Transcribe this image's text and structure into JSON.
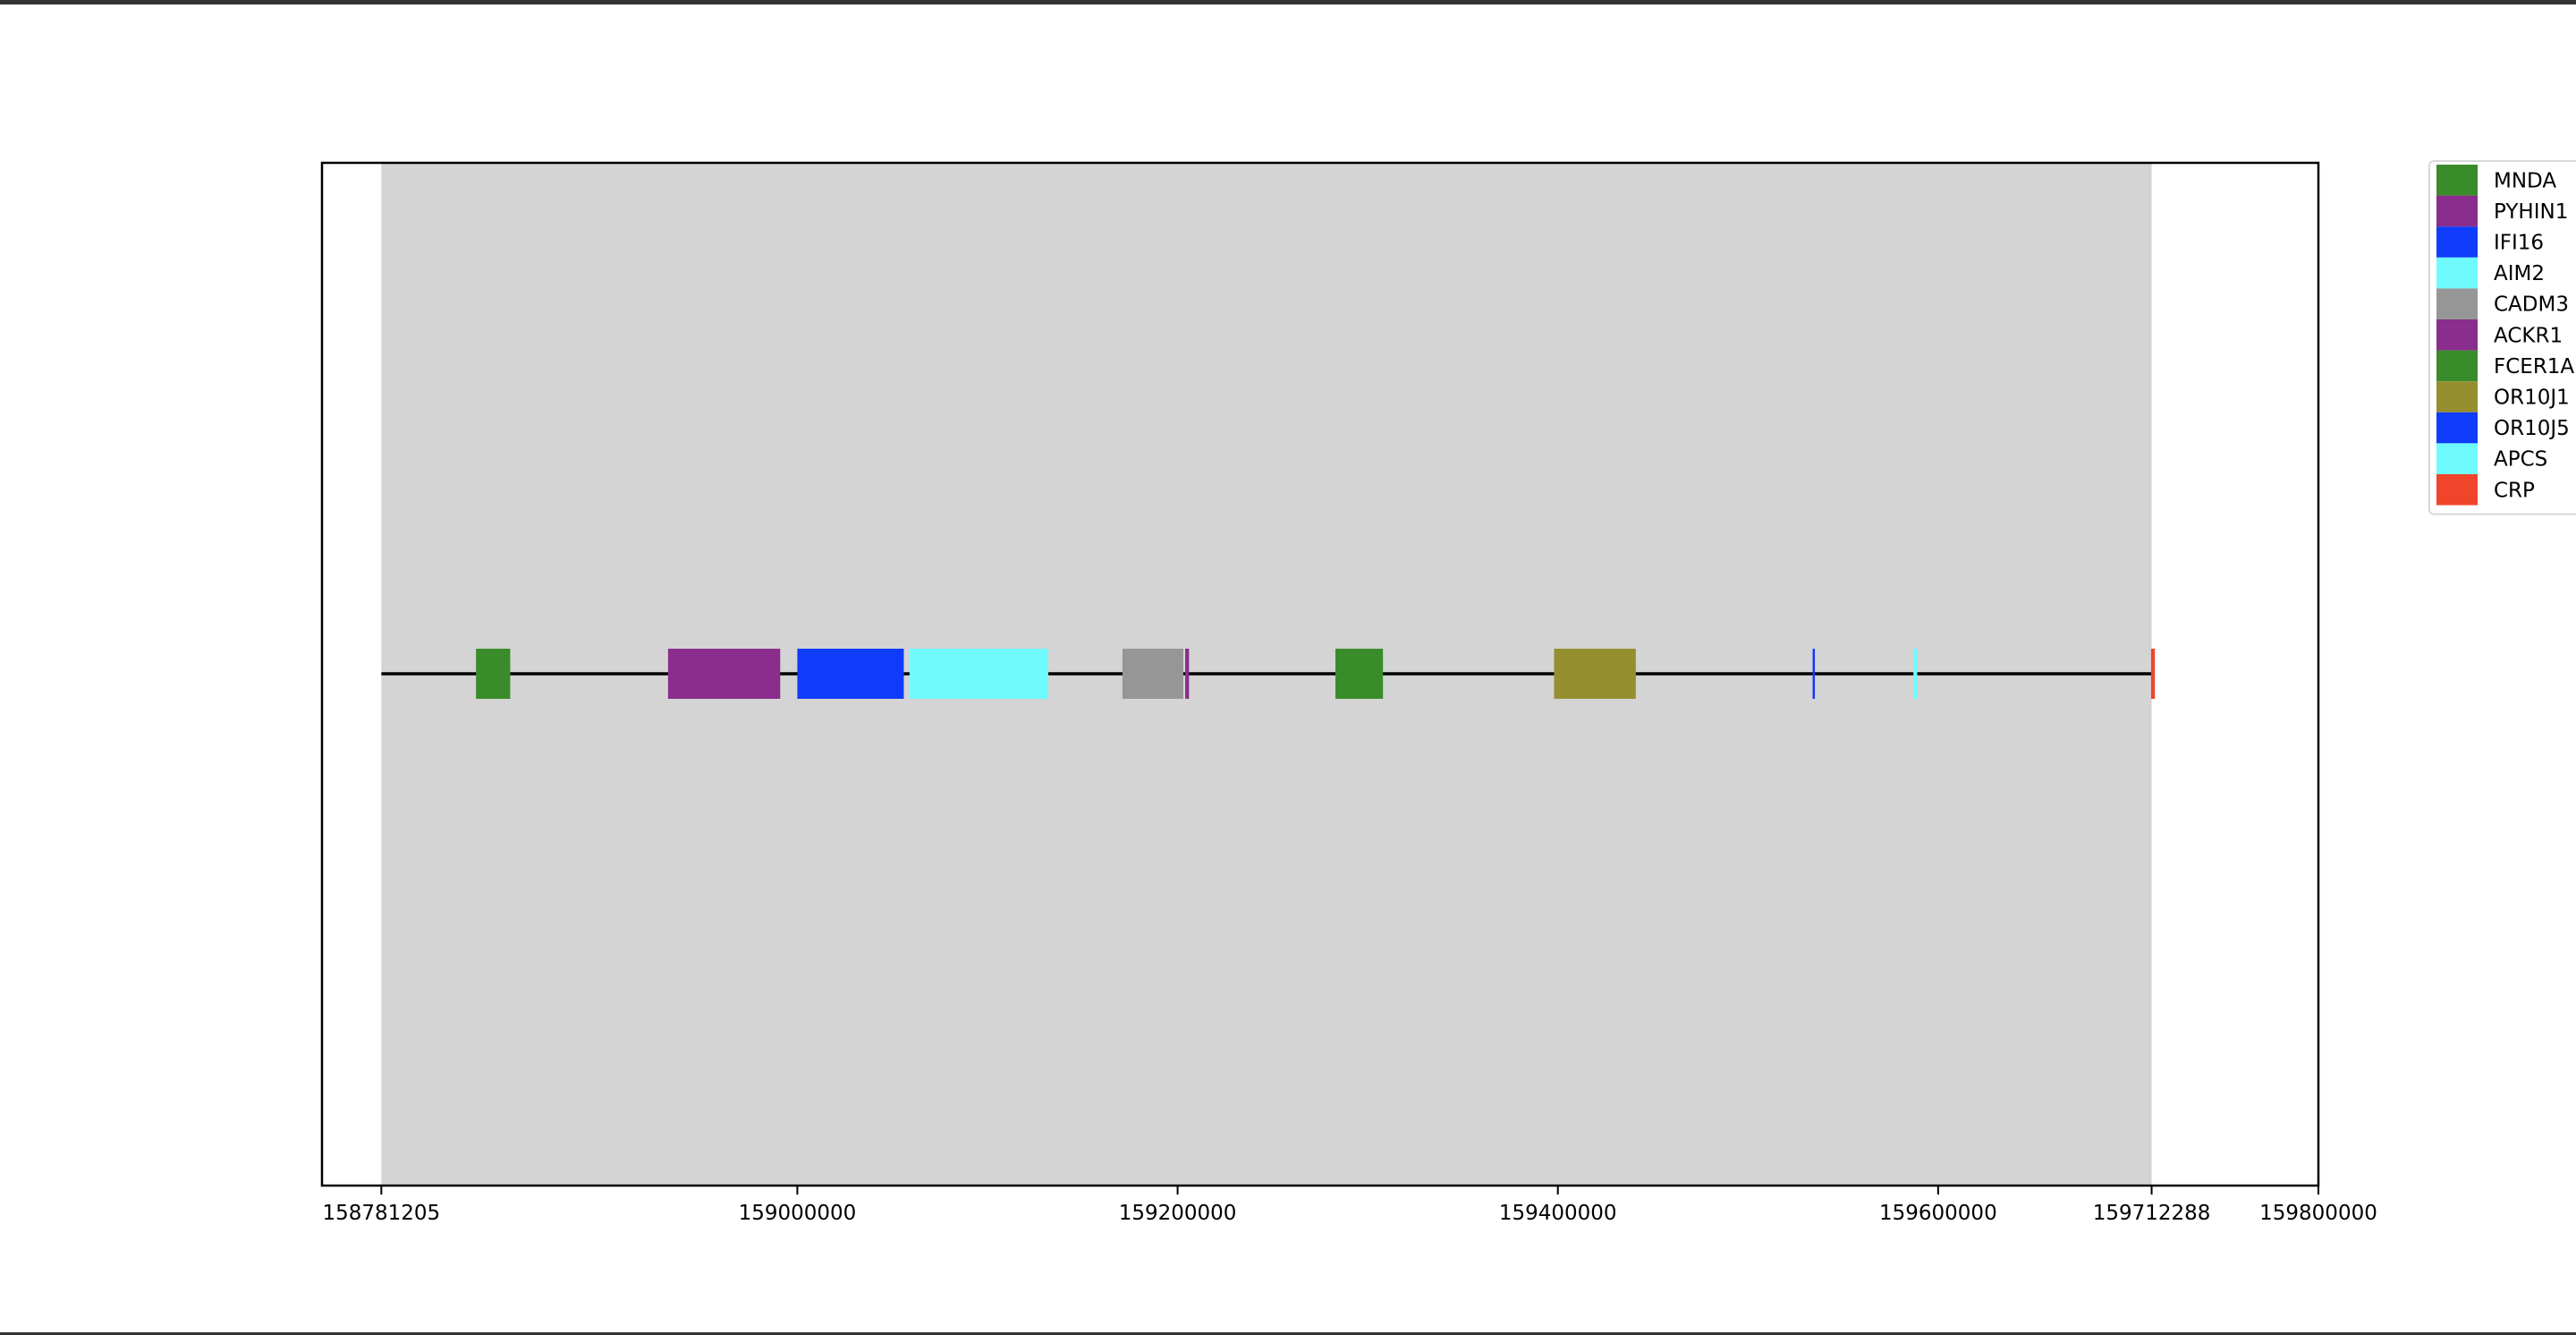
{
  "chart_data": {
    "type": "gene-track",
    "title": "",
    "xlabel": "",
    "ylabel": "",
    "xlim": [
      158750000,
      159800000
    ],
    "highlight_region": [
      158781205,
      159712288
    ],
    "highlight_color": "#d4d4d4",
    "baseline": [
      158781205,
      159712288
    ],
    "grid": false,
    "legend_position": "upper right, outside plot",
    "x_ticks": [
      {
        "value": 158781205,
        "label": "158781205"
      },
      {
        "value": 159000000,
        "label": "159000000"
      },
      {
        "value": 159200000,
        "label": "159200000"
      },
      {
        "value": 159400000,
        "label": "159400000"
      },
      {
        "value": 159600000,
        "label": "159600000"
      },
      {
        "value": 159712288,
        "label": "159712288"
      },
      {
        "value": 159800000,
        "label": "159800000"
      }
    ],
    "genes": [
      {
        "name": "MNDA",
        "start": 158831000,
        "end": 158849000,
        "color": "#3a8c2a"
      },
      {
        "name": "PYHIN1",
        "start": 158932000,
        "end": 158991000,
        "color": "#8a2d8c"
      },
      {
        "name": "IFI16",
        "start": 159000000,
        "end": 159056000,
        "color": "#0f3bfa"
      },
      {
        "name": "AIM2",
        "start": 159059000,
        "end": 159132000,
        "color": "#6ffbfd"
      },
      {
        "name": "CADM3",
        "start": 159171000,
        "end": 159203000,
        "color": "#969696"
      },
      {
        "name": "ACKR1",
        "start": 159204000,
        "end": 159206000,
        "color": "#8a2d8c"
      },
      {
        "name": "FCER1A",
        "start": 159283000,
        "end": 159308000,
        "color": "#3a8c2a"
      },
      {
        "name": "OR10J1",
        "start": 159398000,
        "end": 159441000,
        "color": "#958f2f"
      },
      {
        "name": "OR10J5",
        "start": 159534000,
        "end": 159535000,
        "color": "#0f3bfa"
      },
      {
        "name": "APCS",
        "start": 159587000,
        "end": 159589000,
        "color": "#6ffbfd"
      },
      {
        "name": "CRP",
        "start": 159712000,
        "end": 159714000,
        "color": "#f0442b"
      }
    ]
  }
}
